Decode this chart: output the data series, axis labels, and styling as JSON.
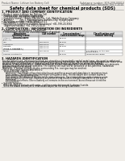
{
  "bg_color": "#f0ede8",
  "header_left": "Product Name: Lithium Ion Battery Cell",
  "header_right_line1": "Substance number: SDS-008-00010",
  "header_right_line2": "Established / Revision: Dec.7.2010",
  "title": "Safety data sheet for chemical products (SDS)",
  "section1_title": "1. PRODUCT AND COMPANY IDENTIFICATION",
  "section1_lines": [
    "• Product name: Lithium Ion Battery Cell",
    "• Product code: Cylindrical-type cell",
    "   (IFR 18650U, IFR18650L, IFR18650A)",
    "• Company name:    Benzo Electric Co., Ltd., Mobile Energy Company",
    "• Address:         200-1, Kamotomachi, Sumoto-City, Hyogo, Japan",
    "• Telephone number:   +81-799-20-4111",
    "• Fax number:   +81-799-26-4125",
    "• Emergency telephone number (Weekdays) +81-799-20-3562",
    "   (Night and holiday) +81-799-20-4125"
  ],
  "section2_title": "2. COMPOSITION / INFORMATION ON INGREDIENTS",
  "section2_intro": "• Substance or preparation: Preparation",
  "section2_sub": "  • Information about the chemical nature of product:",
  "table_headers": [
    "Component\nchemical name",
    "CAS number",
    "Concentration /\nConcentration range",
    "Classification and\nhazard labeling"
  ],
  "table_col_header": "Several name",
  "table_rows": [
    [
      "Lithium oxide tantalate\n(LiMn₂O₄)",
      "-",
      "30-60%",
      "-"
    ],
    [
      "Iron",
      "7439-89-6",
      "15-25%",
      "-"
    ],
    [
      "Aluminium",
      "7429-90-5",
      "2-5%",
      "-"
    ],
    [
      "Graphite\n(Flake or graphite-1)\n(Artificial graphite-1)",
      "7782-42-5\n7782-42-5",
      "10-25%",
      "-"
    ],
    [
      "Copper",
      "7440-50-8",
      "5-15%",
      "Sensitization of the skin\ngroup R43.2"
    ],
    [
      "Organic electrolyte",
      "-",
      "10-20%",
      "Inflammable liquid"
    ]
  ],
  "table_row_heights": [
    6,
    3.5,
    3.5,
    7,
    6,
    3.5
  ],
  "section3_title": "3. HAZARDS IDENTIFICATION",
  "section3_text": [
    "For the battery cell, chemical materials are stored in a hermetically sealed metal case, designed to withstand",
    "temperature changes by pressure-compensation during normal use. As a result, during normal use, there is no",
    "physical danger of ignition or explosion and therefore danger of hazardous materials leakage.",
    "However, if exposed to a fire, added mechanical shocks, decompresses, enters electric without any measure,",
    "the gas release vent will be operated. The battery cell case will be breached or fire-patterns, hazardous",
    "materials may be released.",
    "Moreover, if heated strongly by the surrounding fire, soot gas may be emitted."
  ],
  "section3_sub1": "• Most important hazard and effects:",
  "section3_human": "  Human health effects:",
  "section3_human_lines": [
    "    Inhalation: The release of the electrolyte has an anesthesia action and stimulates in respiratory tract.",
    "    Skin contact: The release of the electrolyte stimulates a skin. The electrolyte skin contact causes a",
    "    sore and stimulation on the skin.",
    "    Eye contact: The release of the electrolyte stimulates eyes. The electrolyte eye contact causes a sore",
    "    and stimulation on the eye. Especially, a substance that causes a strong inflammation of the eye is",
    "    contained.",
    "    Environmental effects: Since a battery cell remains in the environment, do not throw out it into the",
    "    environment."
  ],
  "section3_sub2": "• Specific hazards:",
  "section3_specific": [
    "  If the electrolyte contacts with water, it will generate detrimental hydrogen fluoride.",
    "  Since the sealed electrolyte is inflammable liquid, do not bring close to fire."
  ]
}
